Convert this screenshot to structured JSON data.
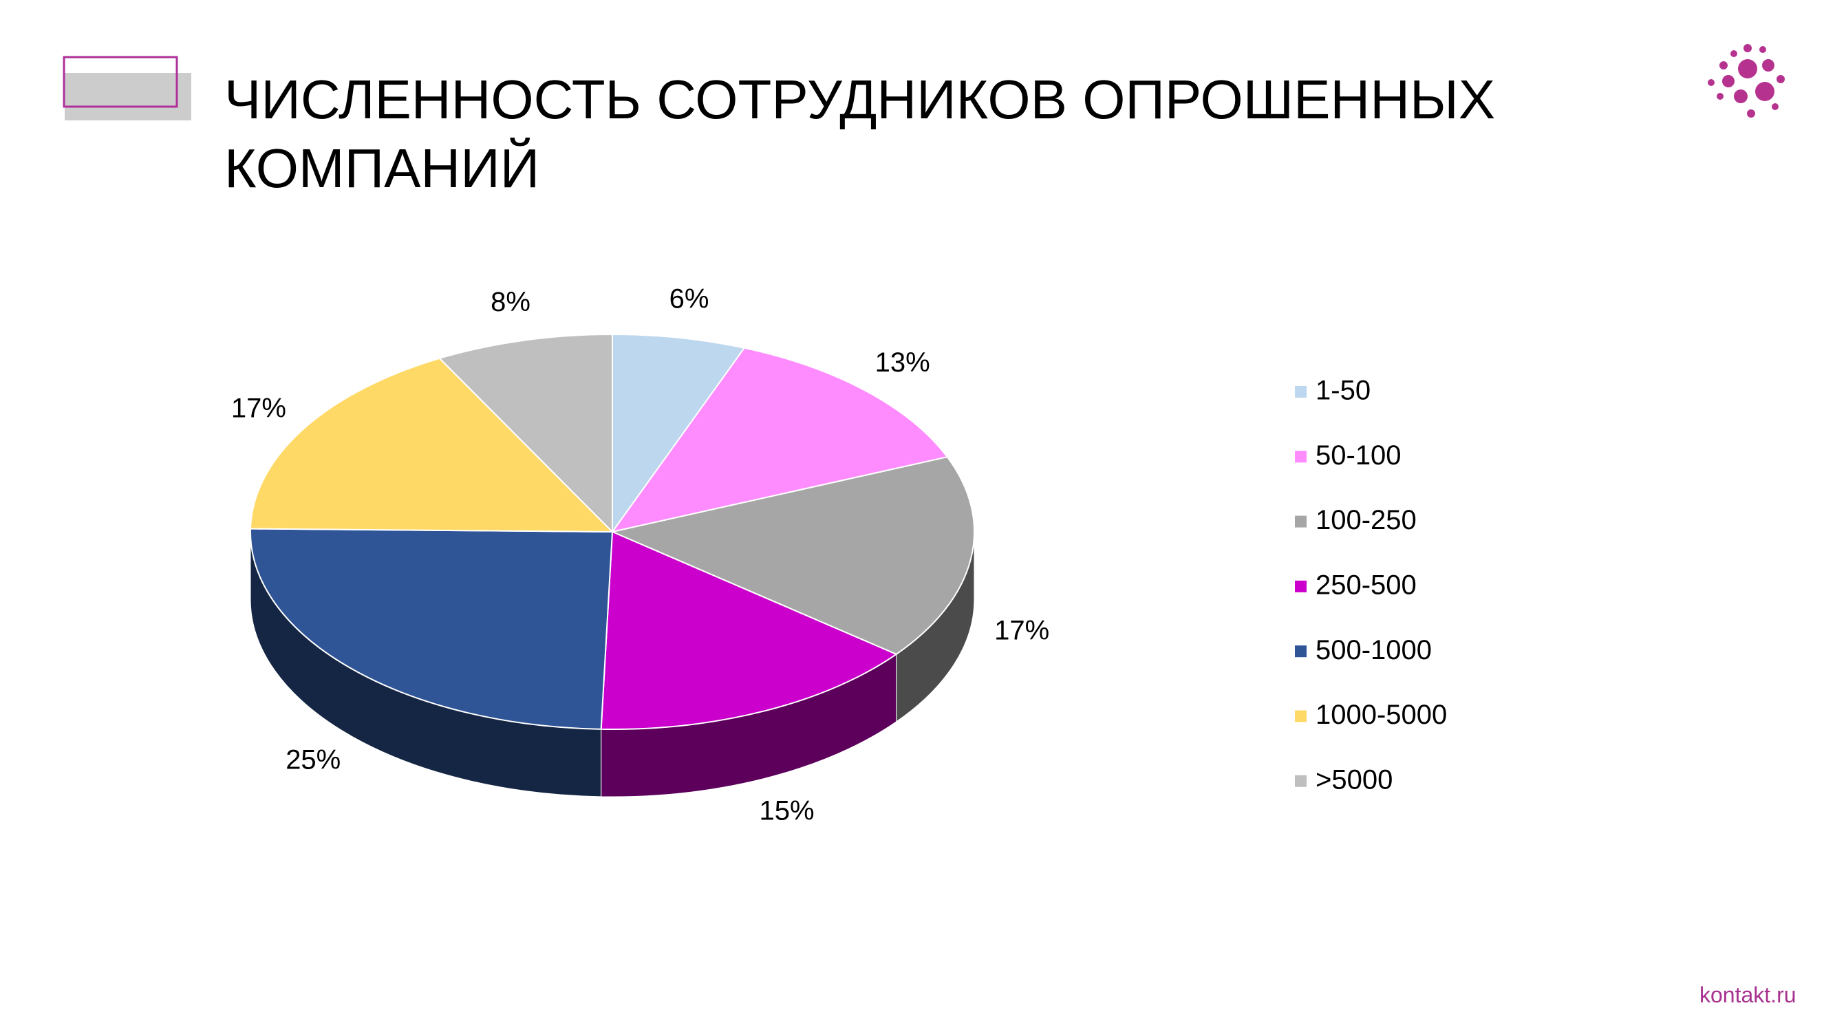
{
  "chart_data": {
    "type": "pie",
    "title": "ЧИСЛЕННОСТЬ СОТРУДНИКОВ ОПРОШЕННЫХ КОМПАНИЙ",
    "categories": [
      "1-50",
      "50-100",
      "100-250",
      "250-500",
      "500-1000",
      "1000-5000",
      ">5000"
    ],
    "values": [
      6,
      13,
      17,
      15,
      25,
      17,
      8
    ],
    "value_labels": [
      "6%",
      "13%",
      "17%",
      "15%",
      "25%",
      "17%",
      "8%"
    ],
    "colors": [
      "#bdd7ee",
      "#ff8cff",
      "#a6a6a6",
      "#cc00cc",
      "#2f5597",
      "#ffd966",
      "#bfbfbf"
    ],
    "legend": "right",
    "three_d": true
  },
  "footer": "kontakt.ru"
}
